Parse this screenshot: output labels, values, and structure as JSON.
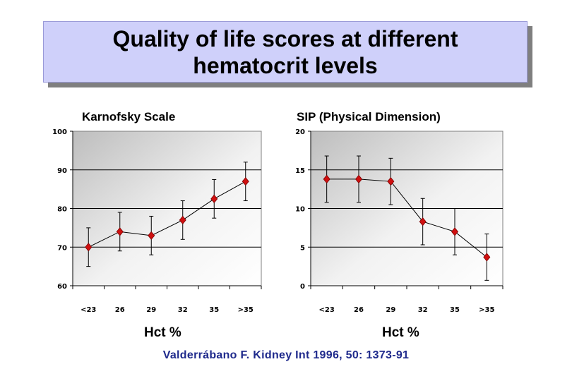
{
  "slide": {
    "title_line1": "Quality of life scores at different",
    "title_line2": "hematocrit levels",
    "citation": "Valderrábano F. Kidney Int 1996, 50: 1373-91"
  },
  "colors": {
    "title_fill": "#cfd0fa",
    "marker": "#d01010",
    "citation": "#1f2a8c"
  },
  "chart_data": [
    {
      "type": "line",
      "title": "Karnofsky Scale",
      "xlabel": "Hct %",
      "ylabel": "",
      "categories": [
        "<23",
        "26",
        "29",
        "32",
        "35",
        ">35"
      ],
      "y_ticks": [
        "60",
        "70",
        "80",
        "90",
        "100"
      ],
      "ylim": [
        60,
        100
      ],
      "grid": true,
      "series": [
        {
          "values": [
            70,
            74,
            73,
            77,
            82.5,
            87
          ],
          "error_low": [
            65,
            69,
            68,
            72,
            77.5,
            82
          ],
          "error_high": [
            75,
            79,
            78,
            82,
            87.5,
            92
          ]
        }
      ]
    },
    {
      "type": "line",
      "title": "SIP (Physical Dimension)",
      "xlabel": "Hct %",
      "ylabel": "",
      "categories": [
        "<23",
        "26",
        "29",
        "32",
        "35",
        ">35"
      ],
      "y_ticks": [
        "0",
        "5",
        "10",
        "15",
        "20"
      ],
      "ylim": [
        0,
        20
      ],
      "grid": true,
      "series": [
        {
          "values": [
            13.8,
            13.8,
            13.5,
            8.3,
            7,
            3.7
          ],
          "error_low": [
            10.8,
            10.8,
            10.5,
            5.3,
            4,
            0.7
          ],
          "error_high": [
            16.8,
            16.8,
            16.5,
            11.3,
            10,
            6.7
          ]
        }
      ]
    }
  ]
}
